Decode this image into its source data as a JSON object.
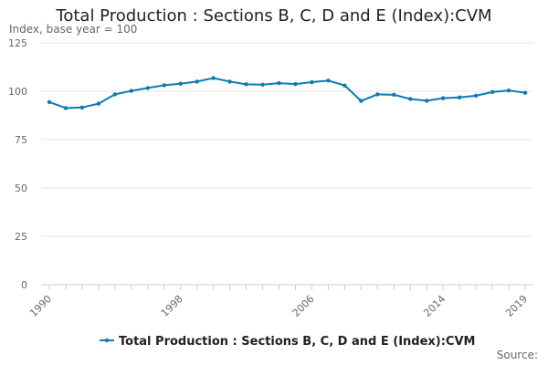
{
  "colors": {
    "series": "#0b7bb3",
    "grid": "#e6e6e6",
    "axis": "#cccccc",
    "background": "#ffffff"
  },
  "chart_data": {
    "type": "line",
    "title": "Total Production : Sections B, C, D and E (Index):CVM",
    "ylabel": "Index, base year = 100",
    "xlabel": "",
    "source_label": "Source:",
    "x": [
      1990,
      1991,
      1992,
      1993,
      1994,
      1995,
      1996,
      1997,
      1998,
      1999,
      2000,
      2001,
      2002,
      2003,
      2004,
      2005,
      2006,
      2007,
      2008,
      2009,
      2010,
      2011,
      2012,
      2013,
      2014,
      2015,
      2016,
      2017,
      2018,
      2019
    ],
    "series": [
      {
        "name": "Total Production : Sections B, C, D and E (Index):CVM",
        "values": [
          94.4,
          91.3,
          91.6,
          93.6,
          98.4,
          100.2,
          101.7,
          103.1,
          103.9,
          105.0,
          106.8,
          105.0,
          103.6,
          103.4,
          104.2,
          103.7,
          104.7,
          105.5,
          103.0,
          95.0,
          98.4,
          98.2,
          96.0,
          95.1,
          96.4,
          96.8,
          97.7,
          99.6,
          100.4,
          99.2
        ]
      }
    ],
    "xticks": [
      1990,
      1998,
      2006,
      2014,
      2019
    ],
    "yticks": [
      0,
      25,
      50,
      75,
      100,
      125
    ],
    "xlim": [
      1990,
      2019
    ],
    "ylim": [
      0,
      125
    ],
    "grid": true,
    "legend": "bottom-center"
  }
}
